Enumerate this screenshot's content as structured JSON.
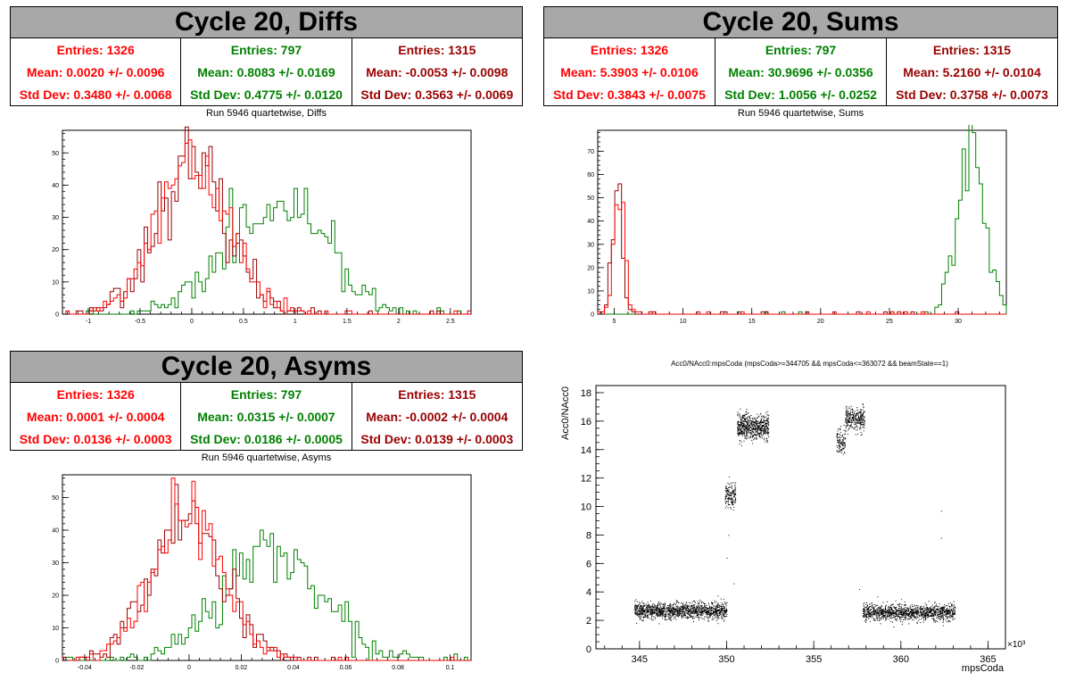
{
  "colors": {
    "red": "#ff0000",
    "green": "#008000",
    "darkred": "#990000",
    "banner": "#a8a8a8"
  },
  "diffs": {
    "banner": "Cycle 20, Diffs",
    "subtitle": "Run 5946 quartetwise, Diffs",
    "stats": [
      {
        "entries": "Entries: 1326",
        "mean": "Mean: 0.0020 +/- 0.0096",
        "std": "Std Dev: 0.3480 +/- 0.0068",
        "color": "#ff0000"
      },
      {
        "entries": "Entries: 797",
        "mean": "Mean: 0.8083 +/- 0.0169",
        "std": "Std Dev: 0.4775 +/- 0.0120",
        "color": "#008000"
      },
      {
        "entries": "Entries: 1315",
        "mean": "Mean: -0.0053 +/- 0.0098",
        "std": "Std Dev: 0.3563 +/- 0.0069",
        "color": "#990000"
      }
    ]
  },
  "sums": {
    "banner": "Cycle 20, Sums",
    "subtitle": "Run 5946 quartetwise, Sums",
    "stats": [
      {
        "entries": "Entries: 1326",
        "mean": "Mean: 5.3903 +/- 0.0106",
        "std": "Std Dev: 0.3843 +/- 0.0075",
        "color": "#ff0000"
      },
      {
        "entries": "Entries: 797",
        "mean": "Mean: 30.9696 +/- 0.0356",
        "std": "Std Dev: 1.0056 +/- 0.0252",
        "color": "#008000"
      },
      {
        "entries": "Entries: 1315",
        "mean": "Mean: 5.2160 +/- 0.0104",
        "std": "Std Dev: 0.3758 +/- 0.0073",
        "color": "#990000"
      }
    ]
  },
  "asyms": {
    "banner": "Cycle 20, Asyms",
    "subtitle": "Run 5946 quartetwise, Asyms",
    "stats": [
      {
        "entries": "Entries: 1326",
        "mean": "Mean: 0.0001 +/- 0.0004",
        "std": "Std Dev: 0.0136 +/- 0.0003",
        "color": "#ff0000"
      },
      {
        "entries": "Entries: 797",
        "mean": "Mean: 0.0315 +/- 0.0007",
        "std": "Std Dev: 0.0186 +/- 0.0005",
        "color": "#008000"
      },
      {
        "entries": "Entries: 1315",
        "mean": "Mean: -0.0002 +/- 0.0004",
        "std": "Std Dev: 0.0139 +/- 0.0003",
        "color": "#990000"
      }
    ]
  },
  "chart_data": [
    {
      "id": "diffs",
      "type": "histogram",
      "title": "Run 5946 quartetwise, Diffs",
      "xlim": [
        -1.25,
        2.7
      ],
      "ylim": [
        0,
        57
      ],
      "xticks": [
        -1,
        -0.5,
        0,
        0.5,
        1,
        1.5,
        2,
        2.5
      ],
      "xtick_labels": [
        "-1",
        "-0.5",
        "0",
        "0.5",
        "1",
        "1.5",
        "2",
        "2.5"
      ],
      "yticks": [
        0,
        10,
        20,
        30,
        40,
        50
      ],
      "series": [
        {
          "color": "#008000",
          "mean": 0.8083,
          "std": 0.4775,
          "peak": 35,
          "seed": 11
        },
        {
          "color": "#990000",
          "mean": -0.0053,
          "std": 0.3563,
          "peak": 45,
          "seed": 23
        },
        {
          "color": "#ff0000",
          "mean": 0.002,
          "std": 0.348,
          "peak": 47,
          "seed": 37
        }
      ]
    },
    {
      "id": "sums",
      "type": "histogram",
      "title": "Run 5946 quartetwise, Sums",
      "xlim": [
        3.8,
        33.5
      ],
      "ylim": [
        0,
        79
      ],
      "xticks": [
        5,
        10,
        15,
        20,
        25,
        30
      ],
      "xtick_labels": [
        "5",
        "10",
        "15",
        "20",
        "25",
        "30"
      ],
      "yticks": [
        0,
        10,
        20,
        30,
        40,
        50,
        60,
        70
      ],
      "series": [
        {
          "color": "#008000",
          "mean": 30.9696,
          "std": 1.0056,
          "peak": 72,
          "seed": 5
        },
        {
          "color": "#990000",
          "mean": 5.216,
          "std": 0.3758,
          "peak": 52,
          "seed": 17
        },
        {
          "color": "#ff0000",
          "mean": 5.3903,
          "std": 0.3843,
          "peak": 50,
          "seed": 29
        }
      ]
    },
    {
      "id": "asyms",
      "type": "histogram",
      "title": "Run 5946 quartetwise, Asyms",
      "xlim": [
        -0.0485,
        0.108
      ],
      "ylim": [
        0,
        57
      ],
      "xticks": [
        -0.04,
        -0.02,
        0,
        0.02,
        0.04,
        0.06,
        0.08,
        0.1
      ],
      "xtick_labels": [
        "-0.04",
        "-0.02",
        "0",
        "0.02",
        "0.04",
        "0.06",
        "0.08",
        "0.1"
      ],
      "yticks": [
        0,
        10,
        20,
        30,
        40,
        50
      ],
      "series": [
        {
          "color": "#008000",
          "mean": 0.0315,
          "std": 0.0186,
          "peak": 35,
          "seed": 43
        },
        {
          "color": "#990000",
          "mean": -0.0002,
          "std": 0.0139,
          "peak": 45,
          "seed": 53
        },
        {
          "color": "#ff0000",
          "mean": 0.0001,
          "std": 0.0136,
          "peak": 47,
          "seed": 61
        }
      ]
    },
    {
      "id": "scatter",
      "type": "scatter",
      "title": "Acc0/NAcc0:mpsCoda (mpsCoda>=344705 && mpsCoda<=363072 && beamState==1)",
      "xlabel": "mpsCoda",
      "ylabel": "Acc0/NAcc0",
      "x_multiplier_label": "×10³",
      "xlim": [
        342.5,
        366
      ],
      "ylim": [
        0,
        18.5
      ],
      "xticks": [
        345,
        350,
        355,
        360,
        365
      ],
      "xtick_labels": [
        "345",
        "350",
        "355",
        "360",
        "365"
      ],
      "yticks": [
        0,
        2,
        4,
        6,
        8,
        10,
        12,
        14,
        16,
        18
      ],
      "ytick_labels": [
        "0",
        "2",
        "4",
        "6",
        "8",
        "10",
        "12",
        "14",
        "16",
        "18"
      ],
      "clusters": [
        {
          "x": [
            344.7,
            350.0
          ],
          "y_center": 2.7,
          "y_spread": 0.55,
          "n": 1400
        },
        {
          "x": [
            349.9,
            350.5
          ],
          "y_center": 10.8,
          "y_spread": 0.8,
          "n": 160
        },
        {
          "x": [
            350.6,
            352.4
          ],
          "y_center": 15.6,
          "y_spread": 0.9,
          "n": 650
        },
        {
          "x": [
            356.3,
            356.8
          ],
          "y_center": 14.6,
          "y_spread": 0.9,
          "n": 120
        },
        {
          "x": [
            356.8,
            357.9
          ],
          "y_center": 16.2,
          "y_spread": 0.8,
          "n": 300
        },
        {
          "x": [
            357.8,
            363.1
          ],
          "y_center": 2.6,
          "y_spread": 0.55,
          "n": 1300
        }
      ]
    }
  ]
}
